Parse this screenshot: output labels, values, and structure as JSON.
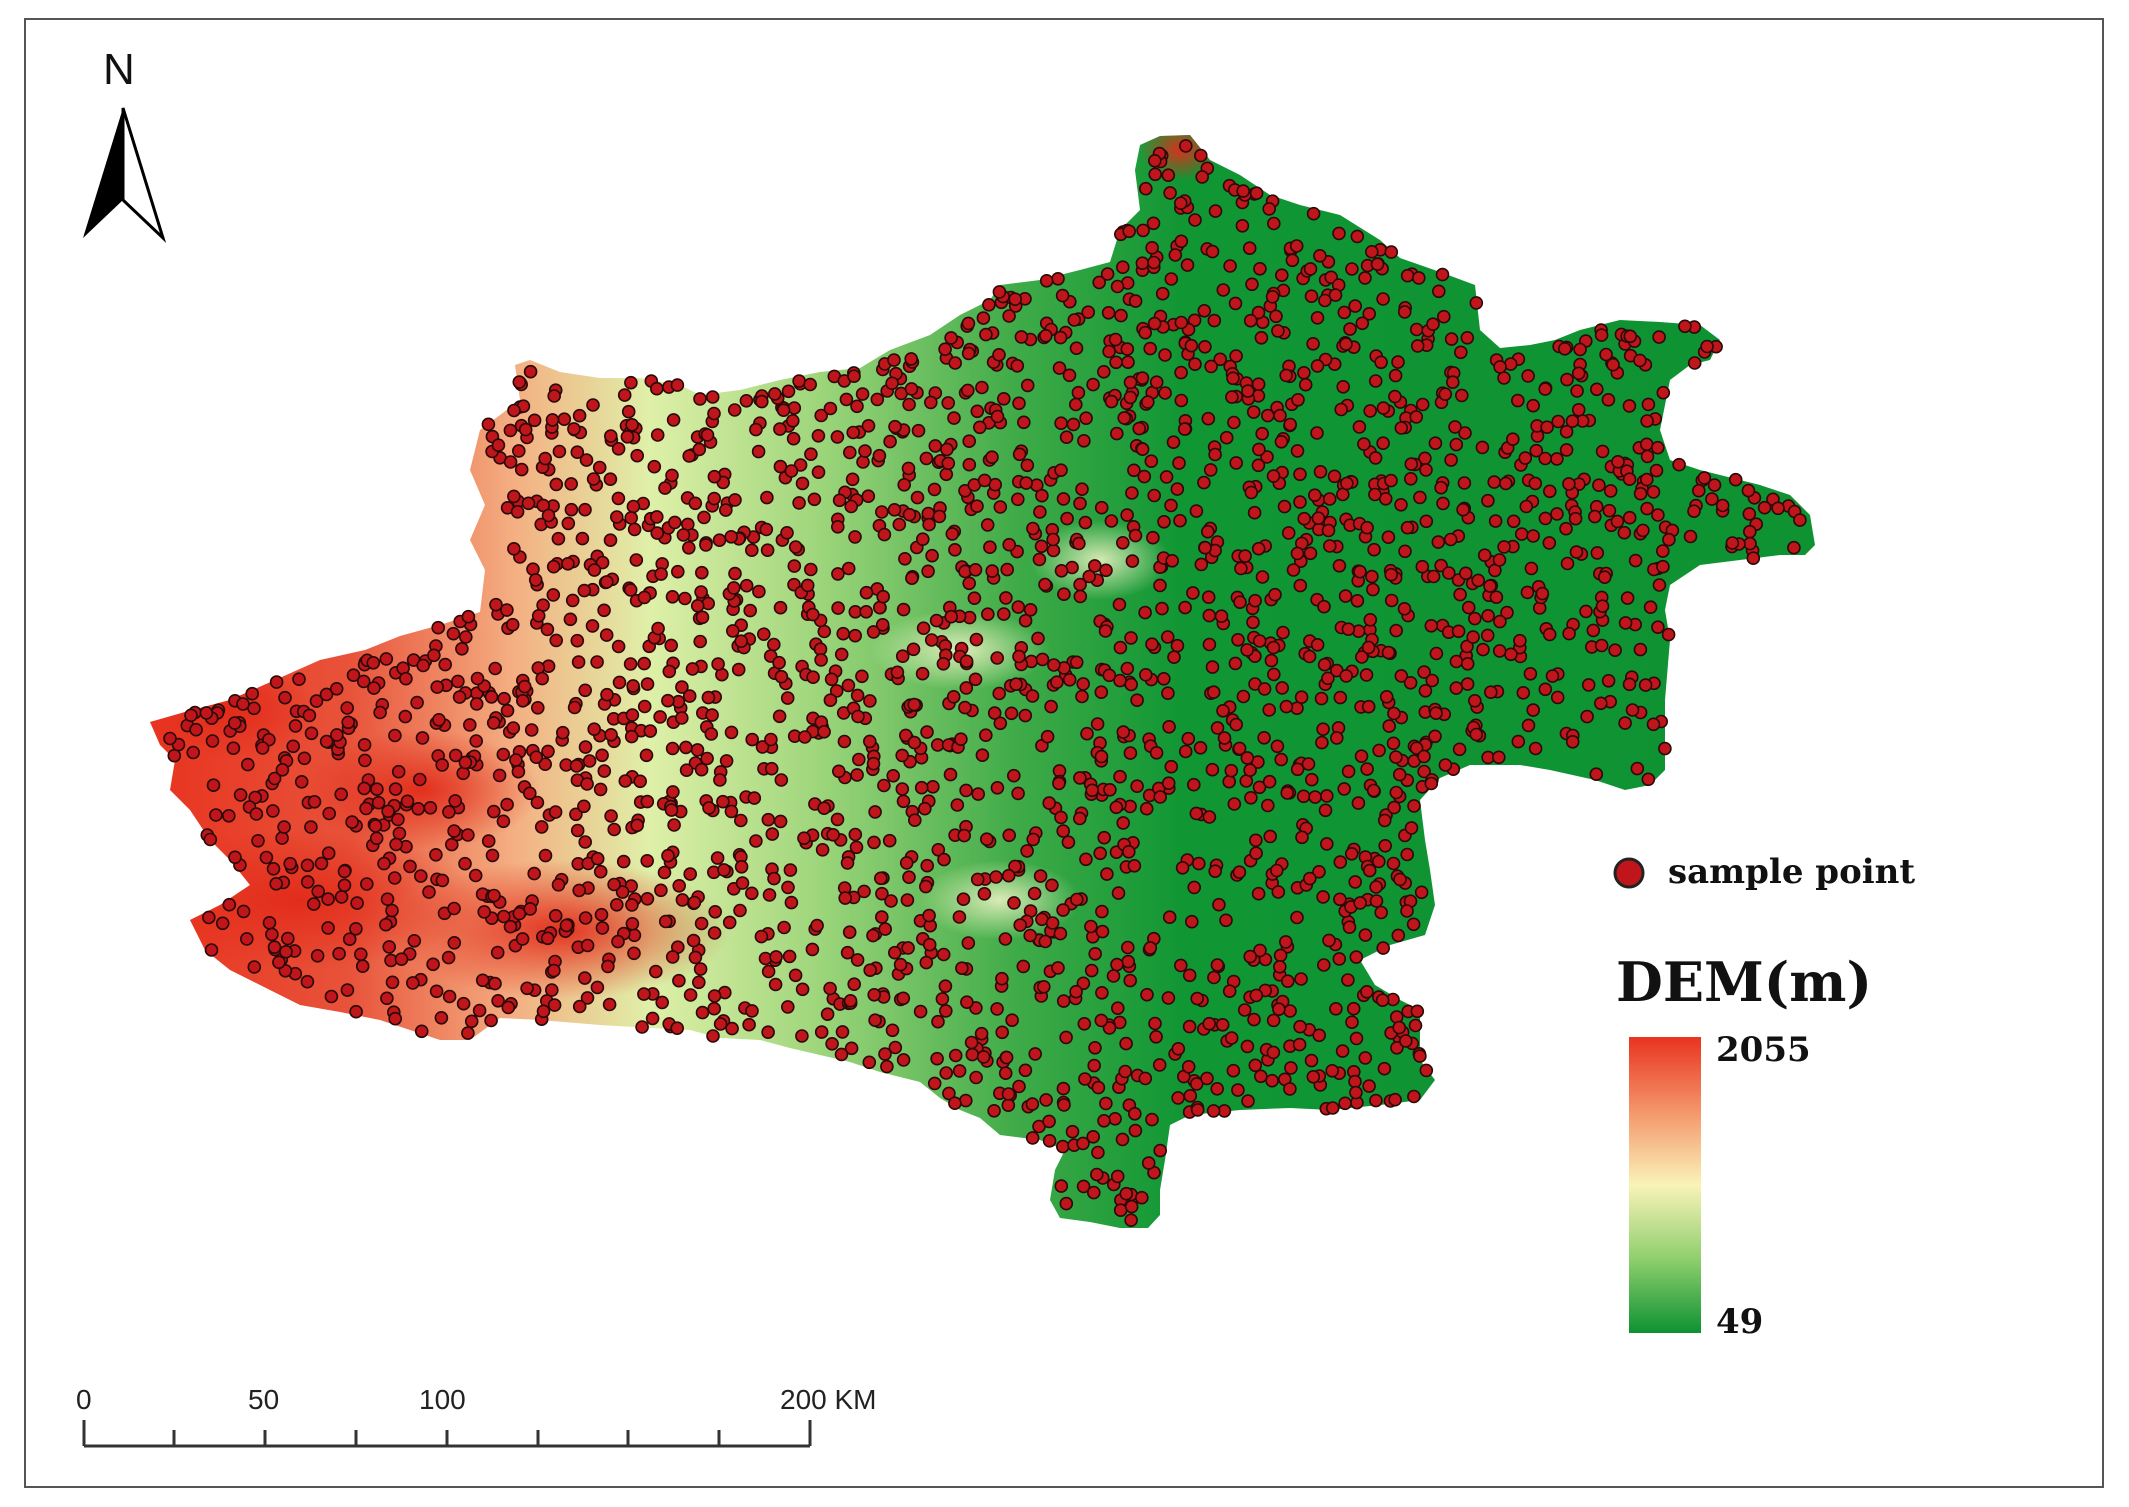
{
  "north_arrow": {
    "label": "N"
  },
  "legend": {
    "sample_point_label": "sample point",
    "dem_title": "DEM(m)",
    "dem_max": "2055",
    "dem_min": "49",
    "colors": {
      "high": "#e8331f",
      "mid_high": "#f4956a",
      "mid": "#f9f3b8",
      "mid_low": "#8fcf6e",
      "low": "#0e9232",
      "point_fill": "#c0161b"
    }
  },
  "scale_bar": {
    "labels": [
      "0",
      "50",
      "100",
      "200 KM"
    ],
    "unit": "KM"
  }
}
